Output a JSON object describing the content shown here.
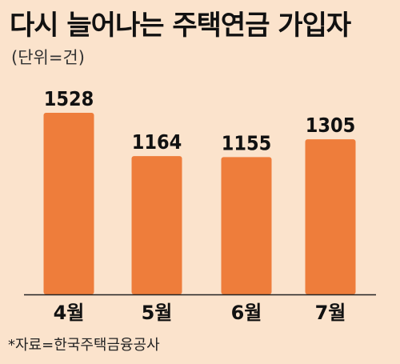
{
  "title": "다시 늘어나는 주택연금 가입자",
  "unit_label": "(단위=건)",
  "source": "*자료=한국주택금융공사",
  "colors": {
    "background": "#fbe3cc",
    "bar": "#ee7d3b",
    "baseline": "#222222",
    "text": "#111111"
  },
  "chart_data": {
    "type": "bar",
    "categories": [
      "4월",
      "5월",
      "6월",
      "7월"
    ],
    "values": [
      1528,
      1164,
      1155,
      1305
    ],
    "title": "다시 늘어나는 주택연금 가입자",
    "unit": "(단위=건)",
    "xlabel": "",
    "ylabel": "",
    "ylim": [
      0,
      1528
    ],
    "grid": false,
    "legend": "none",
    "data_labels": true
  }
}
